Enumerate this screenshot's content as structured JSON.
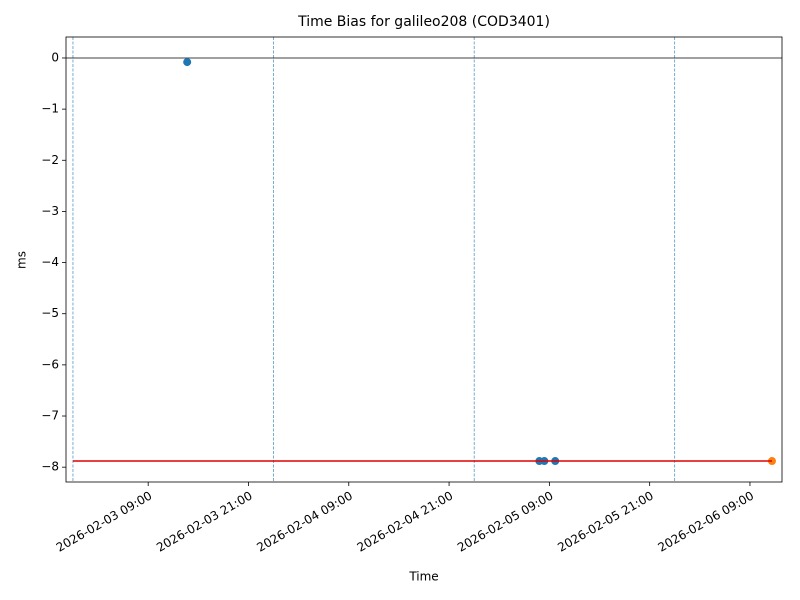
{
  "chart_data": {
    "type": "scatter",
    "title": "Time Bias for galileo208 (COD3401)",
    "xlabel": "Time",
    "ylabel": "ms",
    "xlim": [
      "2026-02-02 23:10",
      "2026-02-06 12:50"
    ],
    "xticks": [
      "2026-02-03 09:00",
      "2026-02-03 21:00",
      "2026-02-04 09:00",
      "2026-02-04 21:00",
      "2026-02-05 09:00",
      "2026-02-05 21:00",
      "2026-02-06 09:00"
    ],
    "ylim": [
      -8.29,
      0.41
    ],
    "yticks": [
      {
        "value": -8,
        "label": "−8"
      },
      {
        "value": -7,
        "label": "−7"
      },
      {
        "value": -6,
        "label": "−6"
      },
      {
        "value": -5,
        "label": "−5"
      },
      {
        "value": -4,
        "label": "−4"
      },
      {
        "value": -3,
        "label": "−3"
      },
      {
        "value": -2,
        "label": "−2"
      },
      {
        "value": -1,
        "label": "−1"
      },
      0
    ],
    "hline": {
      "value": 0,
      "color": "#000000"
    },
    "vlines": {
      "x": [
        "2026-02-03 00:00",
        "2026-02-04 00:00",
        "2026-02-05 00:00",
        "2026-02-06 00:00"
      ],
      "color": "#1f77b4"
    },
    "series": [
      {
        "mode": "markers",
        "color": "#1f77b4",
        "x": [
          "2026-02-03 13:40",
          "2026-02-05 07:48",
          "2026-02-05 08:24",
          "2026-02-05 09:42"
        ],
        "values": [
          -0.08,
          -7.88,
          -7.88,
          -7.88
        ]
      },
      {
        "mode": "markers",
        "color": "#ff7f0e",
        "x": [
          "2026-02-06 11:38"
        ],
        "values": [
          -7.88
        ]
      },
      {
        "mode": "line",
        "color": "#e00000",
        "x": [
          "2026-02-03 00:00",
          "2026-02-06 11:38"
        ],
        "values": [
          -7.88,
          -7.88
        ]
      }
    ]
  }
}
